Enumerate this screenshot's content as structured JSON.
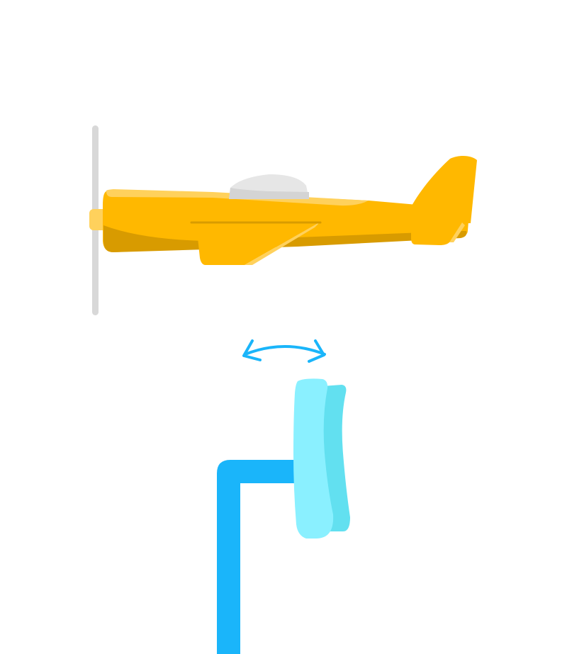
{
  "scene": {
    "plane_icon": "propeller-airplane-side-view",
    "joint_icon": "flexible-hinge",
    "rotation_indicator_icon": "double-headed-curved-arrow",
    "support_icon": "l-shaped-stand"
  },
  "colors": {
    "background": "#ffffff",
    "plane_body": "#FFB800",
    "plane_highlight": "#FFD15C",
    "plane_shadow": "#D89B00",
    "canopy": "#E6E6E6",
    "canopy_shadow": "#D4D4D4",
    "propeller": "#D8D8D8",
    "support": "#1AB5FA",
    "hinge_front": "#8AF0FF",
    "hinge_back": "#62E0F0",
    "arrow": "#1AB5FA"
  }
}
